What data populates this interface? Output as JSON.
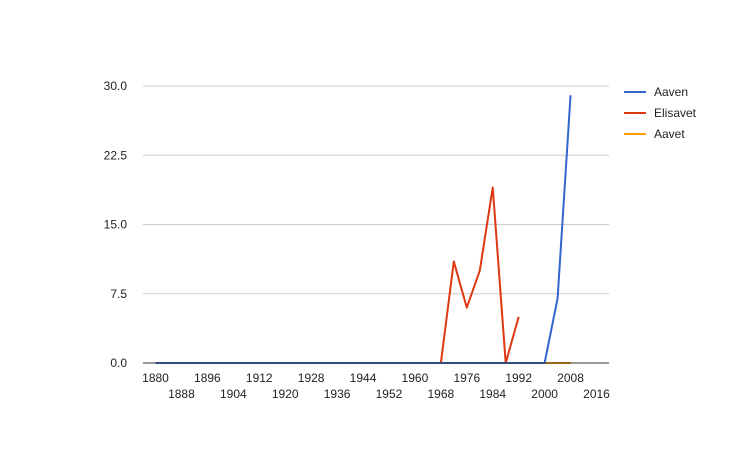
{
  "chart_data": {
    "type": "line",
    "x": [
      1880,
      1884,
      1888,
      1892,
      1896,
      1900,
      1904,
      1908,
      1912,
      1916,
      1920,
      1924,
      1928,
      1932,
      1936,
      1940,
      1944,
      1948,
      1952,
      1956,
      1960,
      1964,
      1968,
      1972,
      1976,
      1980,
      1984,
      1988,
      1992,
      1996,
      2000,
      2004,
      2008,
      2012,
      2016
    ],
    "x_ticks_upper": [
      "1880",
      "1896",
      "1912",
      "1928",
      "1944",
      "1960",
      "1976",
      "1992",
      "2008"
    ],
    "x_ticks_lower": [
      "1888",
      "1904",
      "1920",
      "1936",
      "1952",
      "1968",
      "1984",
      "2000",
      "2016"
    ],
    "y_ticks": [
      "0.0",
      "7.5",
      "15.0",
      "22.5",
      "30.0"
    ],
    "ylim": [
      0,
      30
    ],
    "xlim": [
      1880,
      2016
    ],
    "grid": true,
    "legend_position": "right",
    "series": [
      {
        "name": "Aaven",
        "color": "#3366cc",
        "points": [
          [
            1880,
            0
          ],
          [
            2000,
            0
          ],
          [
            2004,
            7
          ],
          [
            2008,
            29
          ]
        ]
      },
      {
        "name": "Elisavet",
        "color": "#dc3912",
        "points": [
          [
            1880,
            0
          ],
          [
            1968,
            0
          ],
          [
            1972,
            11
          ],
          [
            1976,
            6
          ],
          [
            1980,
            10
          ],
          [
            1984,
            19
          ],
          [
            1988,
            0
          ],
          [
            1992,
            5
          ]
        ]
      },
      {
        "name": "Aavet",
        "color": "#ff9900",
        "points": [
          [
            1880,
            0
          ],
          [
            2008,
            0
          ]
        ]
      }
    ]
  }
}
